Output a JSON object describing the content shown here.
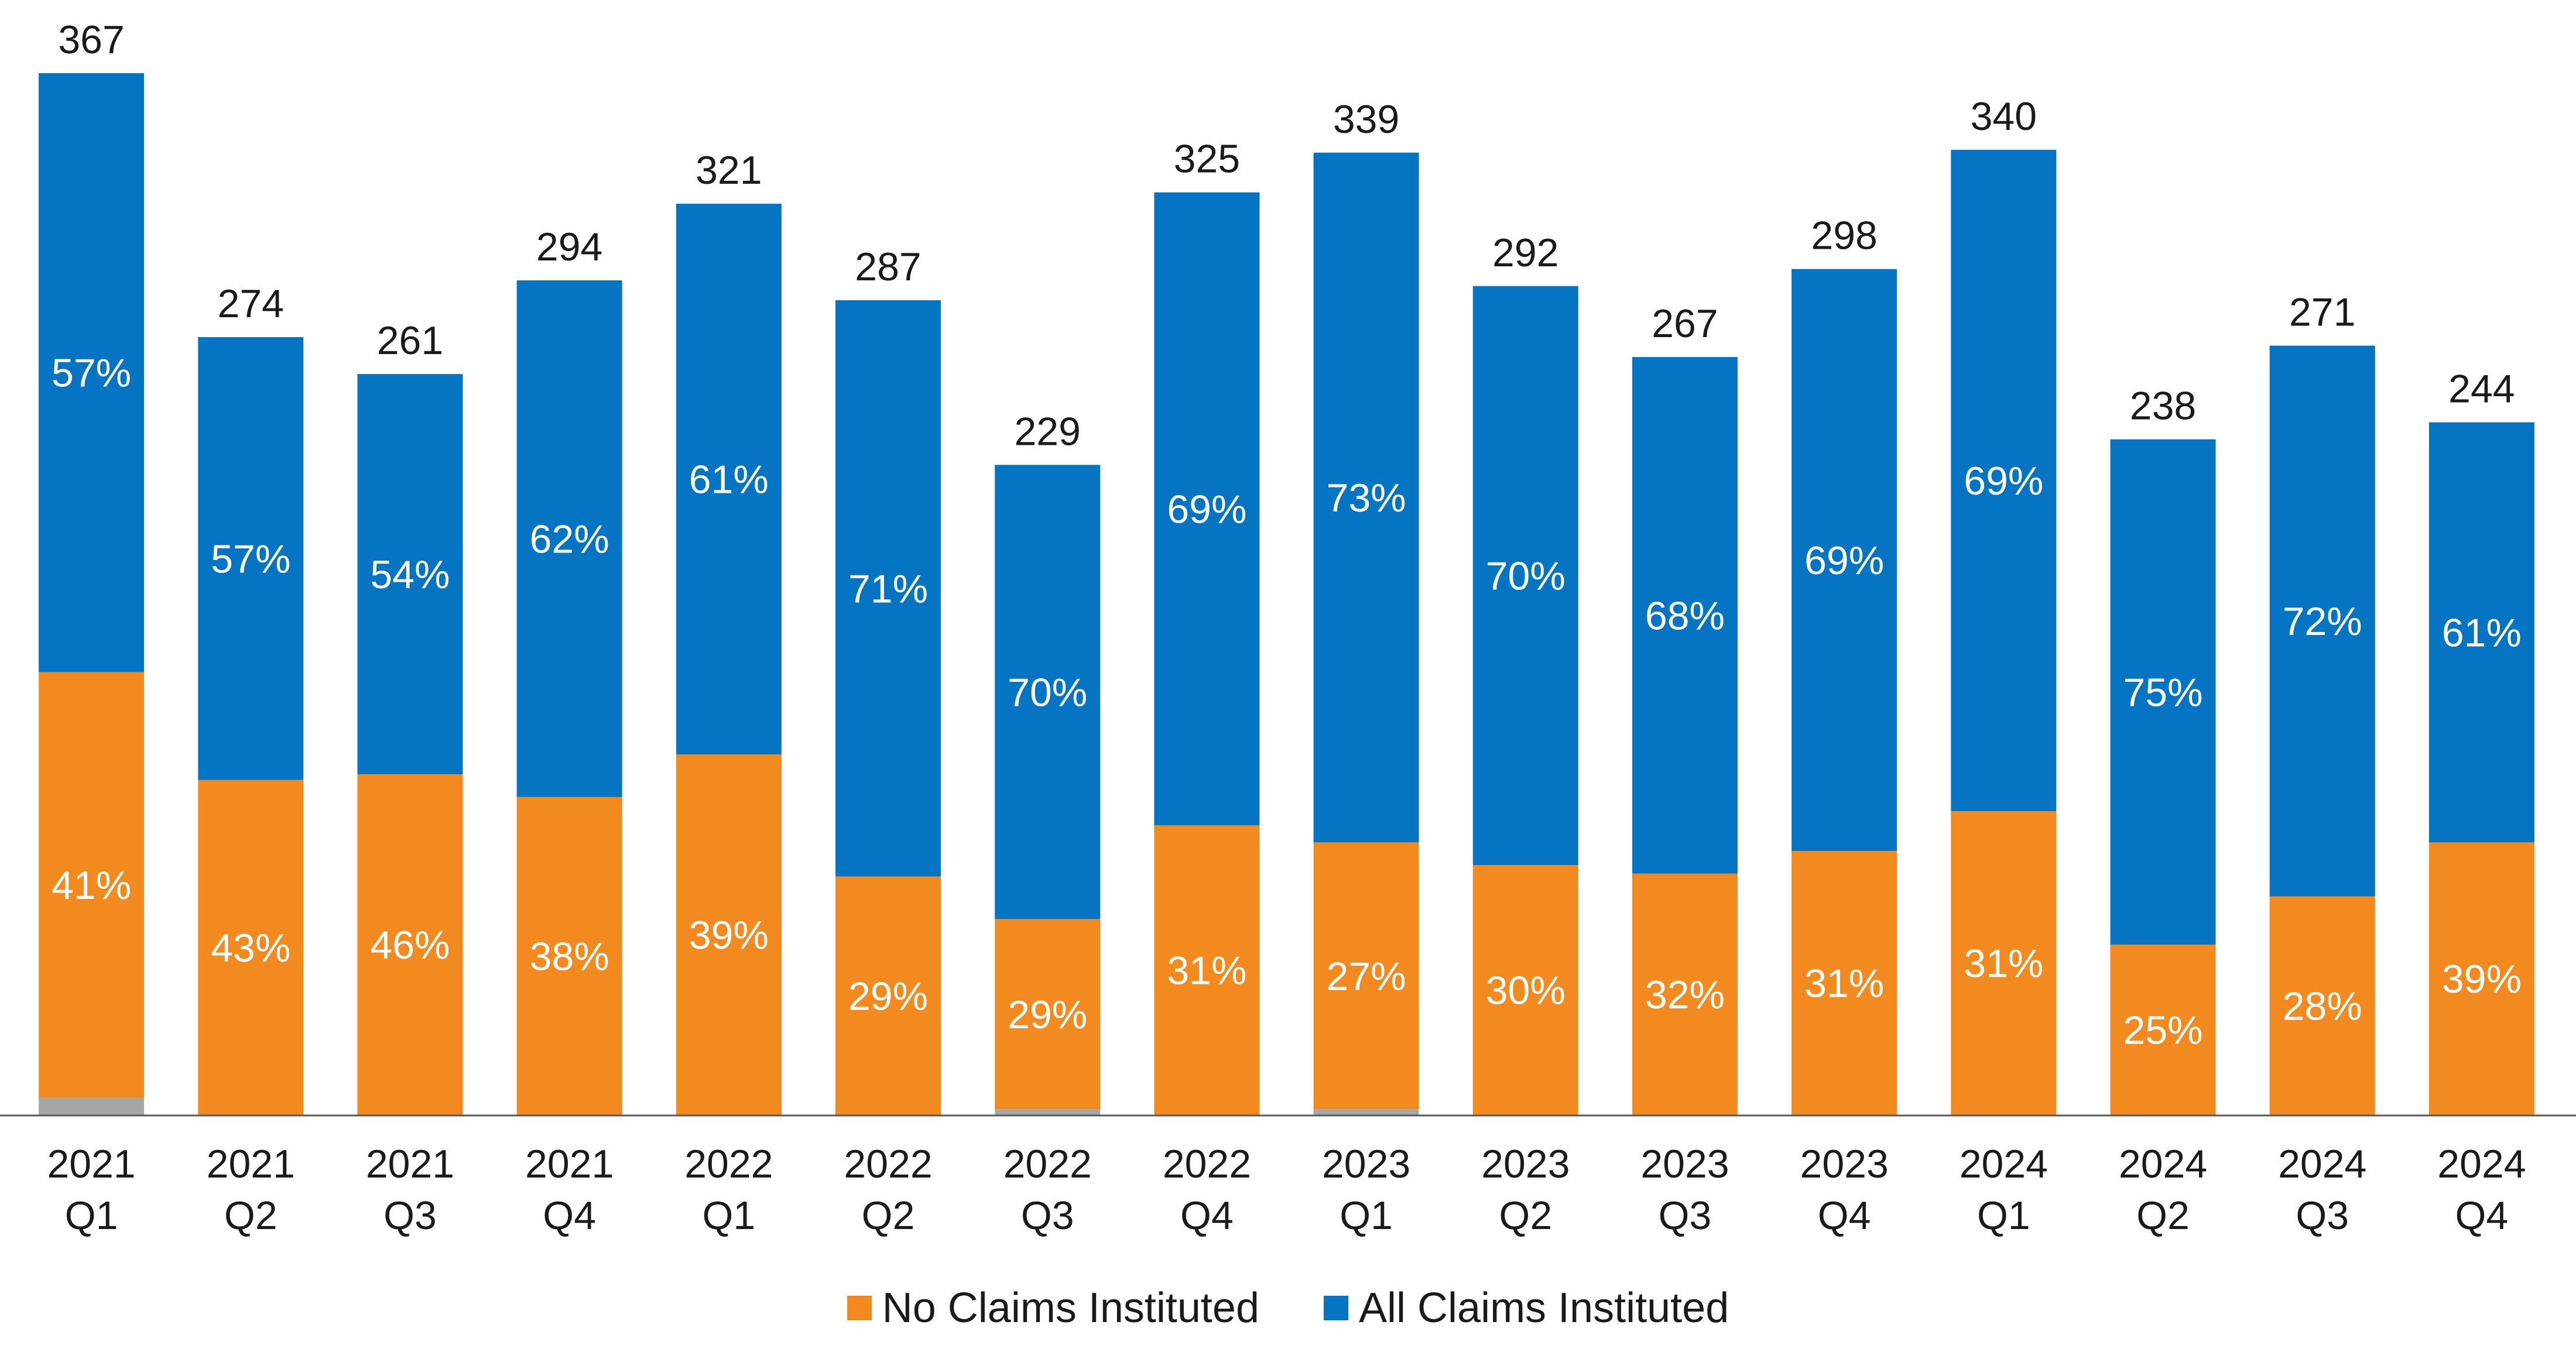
{
  "chart_data": {
    "type": "bar",
    "stacked": true,
    "title": "",
    "xlabel": "",
    "ylabel": "",
    "categories": [
      [
        "2021",
        "Q1"
      ],
      [
        "2021",
        "Q2"
      ],
      [
        "2021",
        "Q3"
      ],
      [
        "2021",
        "Q4"
      ],
      [
        "2022",
        "Q1"
      ],
      [
        "2022",
        "Q2"
      ],
      [
        "2022",
        "Q3"
      ],
      [
        "2022",
        "Q4"
      ],
      [
        "2023",
        "Q1"
      ],
      [
        "2023",
        "Q2"
      ],
      [
        "2023",
        "Q3"
      ],
      [
        "2023",
        "Q4"
      ],
      [
        "2024",
        "Q1"
      ],
      [
        "2024",
        "Q2"
      ],
      [
        "2024",
        "Q3"
      ],
      [
        "2024",
        "Q4"
      ]
    ],
    "totals": [
      367,
      274,
      261,
      294,
      321,
      287,
      229,
      325,
      339,
      292,
      267,
      298,
      340,
      238,
      271,
      244
    ],
    "series": [
      {
        "name": "No Claims Instituted",
        "color": "#F28A1F",
        "values": [
          150,
          118,
          120,
          112,
          127,
          84,
          67,
          102,
          94,
          88,
          85,
          93,
          107,
          60,
          77,
          96
        ],
        "labels": [
          "41%",
          "43%",
          "46%",
          "38%",
          "39%",
          "29%",
          "29%",
          "31%",
          "27%",
          "30%",
          "32%",
          "31%",
          "31%",
          "25%",
          "28%",
          "39%"
        ]
      },
      {
        "name": "All Claims Instituted",
        "color": "#0575C3",
        "values": [
          211,
          156,
          141,
          182,
          194,
          203,
          160,
          223,
          243,
          204,
          182,
          205,
          233,
          178,
          194,
          148
        ],
        "labels": [
          "57%",
          "57%",
          "54%",
          "62%",
          "61%",
          "71%",
          "70%",
          "69%",
          "73%",
          "70%",
          "68%",
          "69%",
          "69%",
          "75%",
          "72%",
          "61%"
        ]
      },
      {
        "color": "#A6A6A6",
        "values": [
          6,
          0,
          0,
          0,
          0,
          0,
          2,
          0,
          2,
          0,
          0,
          0,
          0,
          0,
          0,
          0
        ]
      }
    ],
    "ylim": [
      0,
      367
    ],
    "grid": false,
    "legend_position": "bottom",
    "label_color_inside": "#ffffff",
    "label_color_total": "#1a1a1a",
    "axis_color": "#595959"
  }
}
